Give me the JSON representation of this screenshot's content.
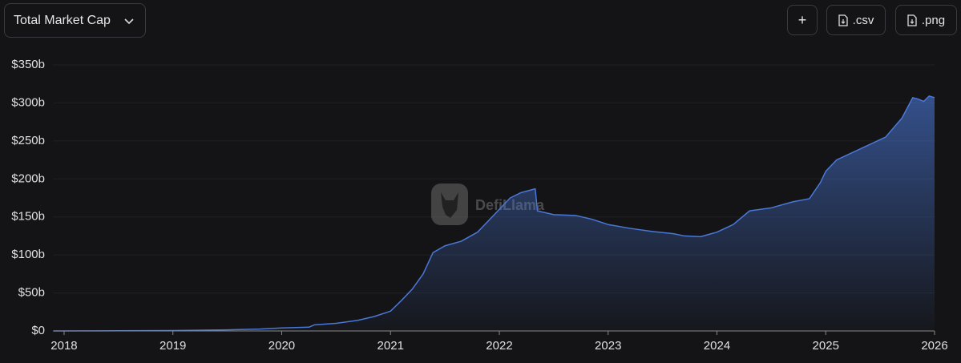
{
  "controls": {
    "dropdown": "Total Market Cap",
    "buttons": [
      "+",
      ".csv",
      ".png"
    ]
  },
  "chart_data": {
    "type": "area",
    "watermark": "DefiLlama",
    "x": [
      2017.9,
      2018.5,
      2019.0,
      2019.5,
      2019.8,
      2020.0,
      2020.25,
      2020.3,
      2020.5,
      2020.7,
      2020.85,
      2021.0,
      2021.1,
      2021.2,
      2021.3,
      2021.39,
      2021.5,
      2021.65,
      2021.8,
      2021.9,
      2022.0,
      2022.1,
      2022.2,
      2022.33,
      2022.35,
      2022.5,
      2022.7,
      2022.85,
      2023.0,
      2023.2,
      2023.4,
      2023.6,
      2023.7,
      2023.85,
      2024.0,
      2024.15,
      2024.3,
      2024.5,
      2024.7,
      2024.85,
      2024.95,
      2025.0,
      2025.1,
      2025.25,
      2025.4,
      2025.55,
      2025.7,
      2025.8,
      2025.85,
      2025.9,
      2025.95,
      2026.0
    ],
    "series": [
      {
        "name": "Total Market Cap",
        "color": "#4a78d8",
        "values": [
          0,
          0.2,
          0.5,
          1.5,
          2.5,
          4,
          5,
          8,
          10,
          14,
          19,
          26,
          40,
          55,
          75,
          103,
          112,
          118,
          130,
          145,
          160,
          175,
          182,
          187,
          158,
          153,
          152,
          147,
          140,
          135,
          131,
          128,
          125,
          124,
          130,
          140,
          158,
          162,
          170,
          174,
          195,
          210,
          225,
          235,
          245,
          255,
          280,
          307,
          305,
          302,
          309,
          307
        ]
      }
    ],
    "xlim": [
      2017.9,
      2026.0
    ],
    "xticks": [
      2018,
      2019,
      2020,
      2021,
      2022,
      2023,
      2024,
      2025,
      2026
    ],
    "ylim": [
      0,
      350
    ],
    "yticks": [
      {
        "value": 0,
        "label": "$0"
      },
      {
        "value": 50,
        "label": "$50b"
      },
      {
        "value": 100,
        "label": "$100b"
      },
      {
        "value": 150,
        "label": "$150b"
      },
      {
        "value": 200,
        "label": "$200b"
      },
      {
        "value": 250,
        "label": "$250b"
      },
      {
        "value": 300,
        "label": "$300b"
      },
      {
        "value": 350,
        "label": "$350b"
      }
    ],
    "grid": true
  }
}
